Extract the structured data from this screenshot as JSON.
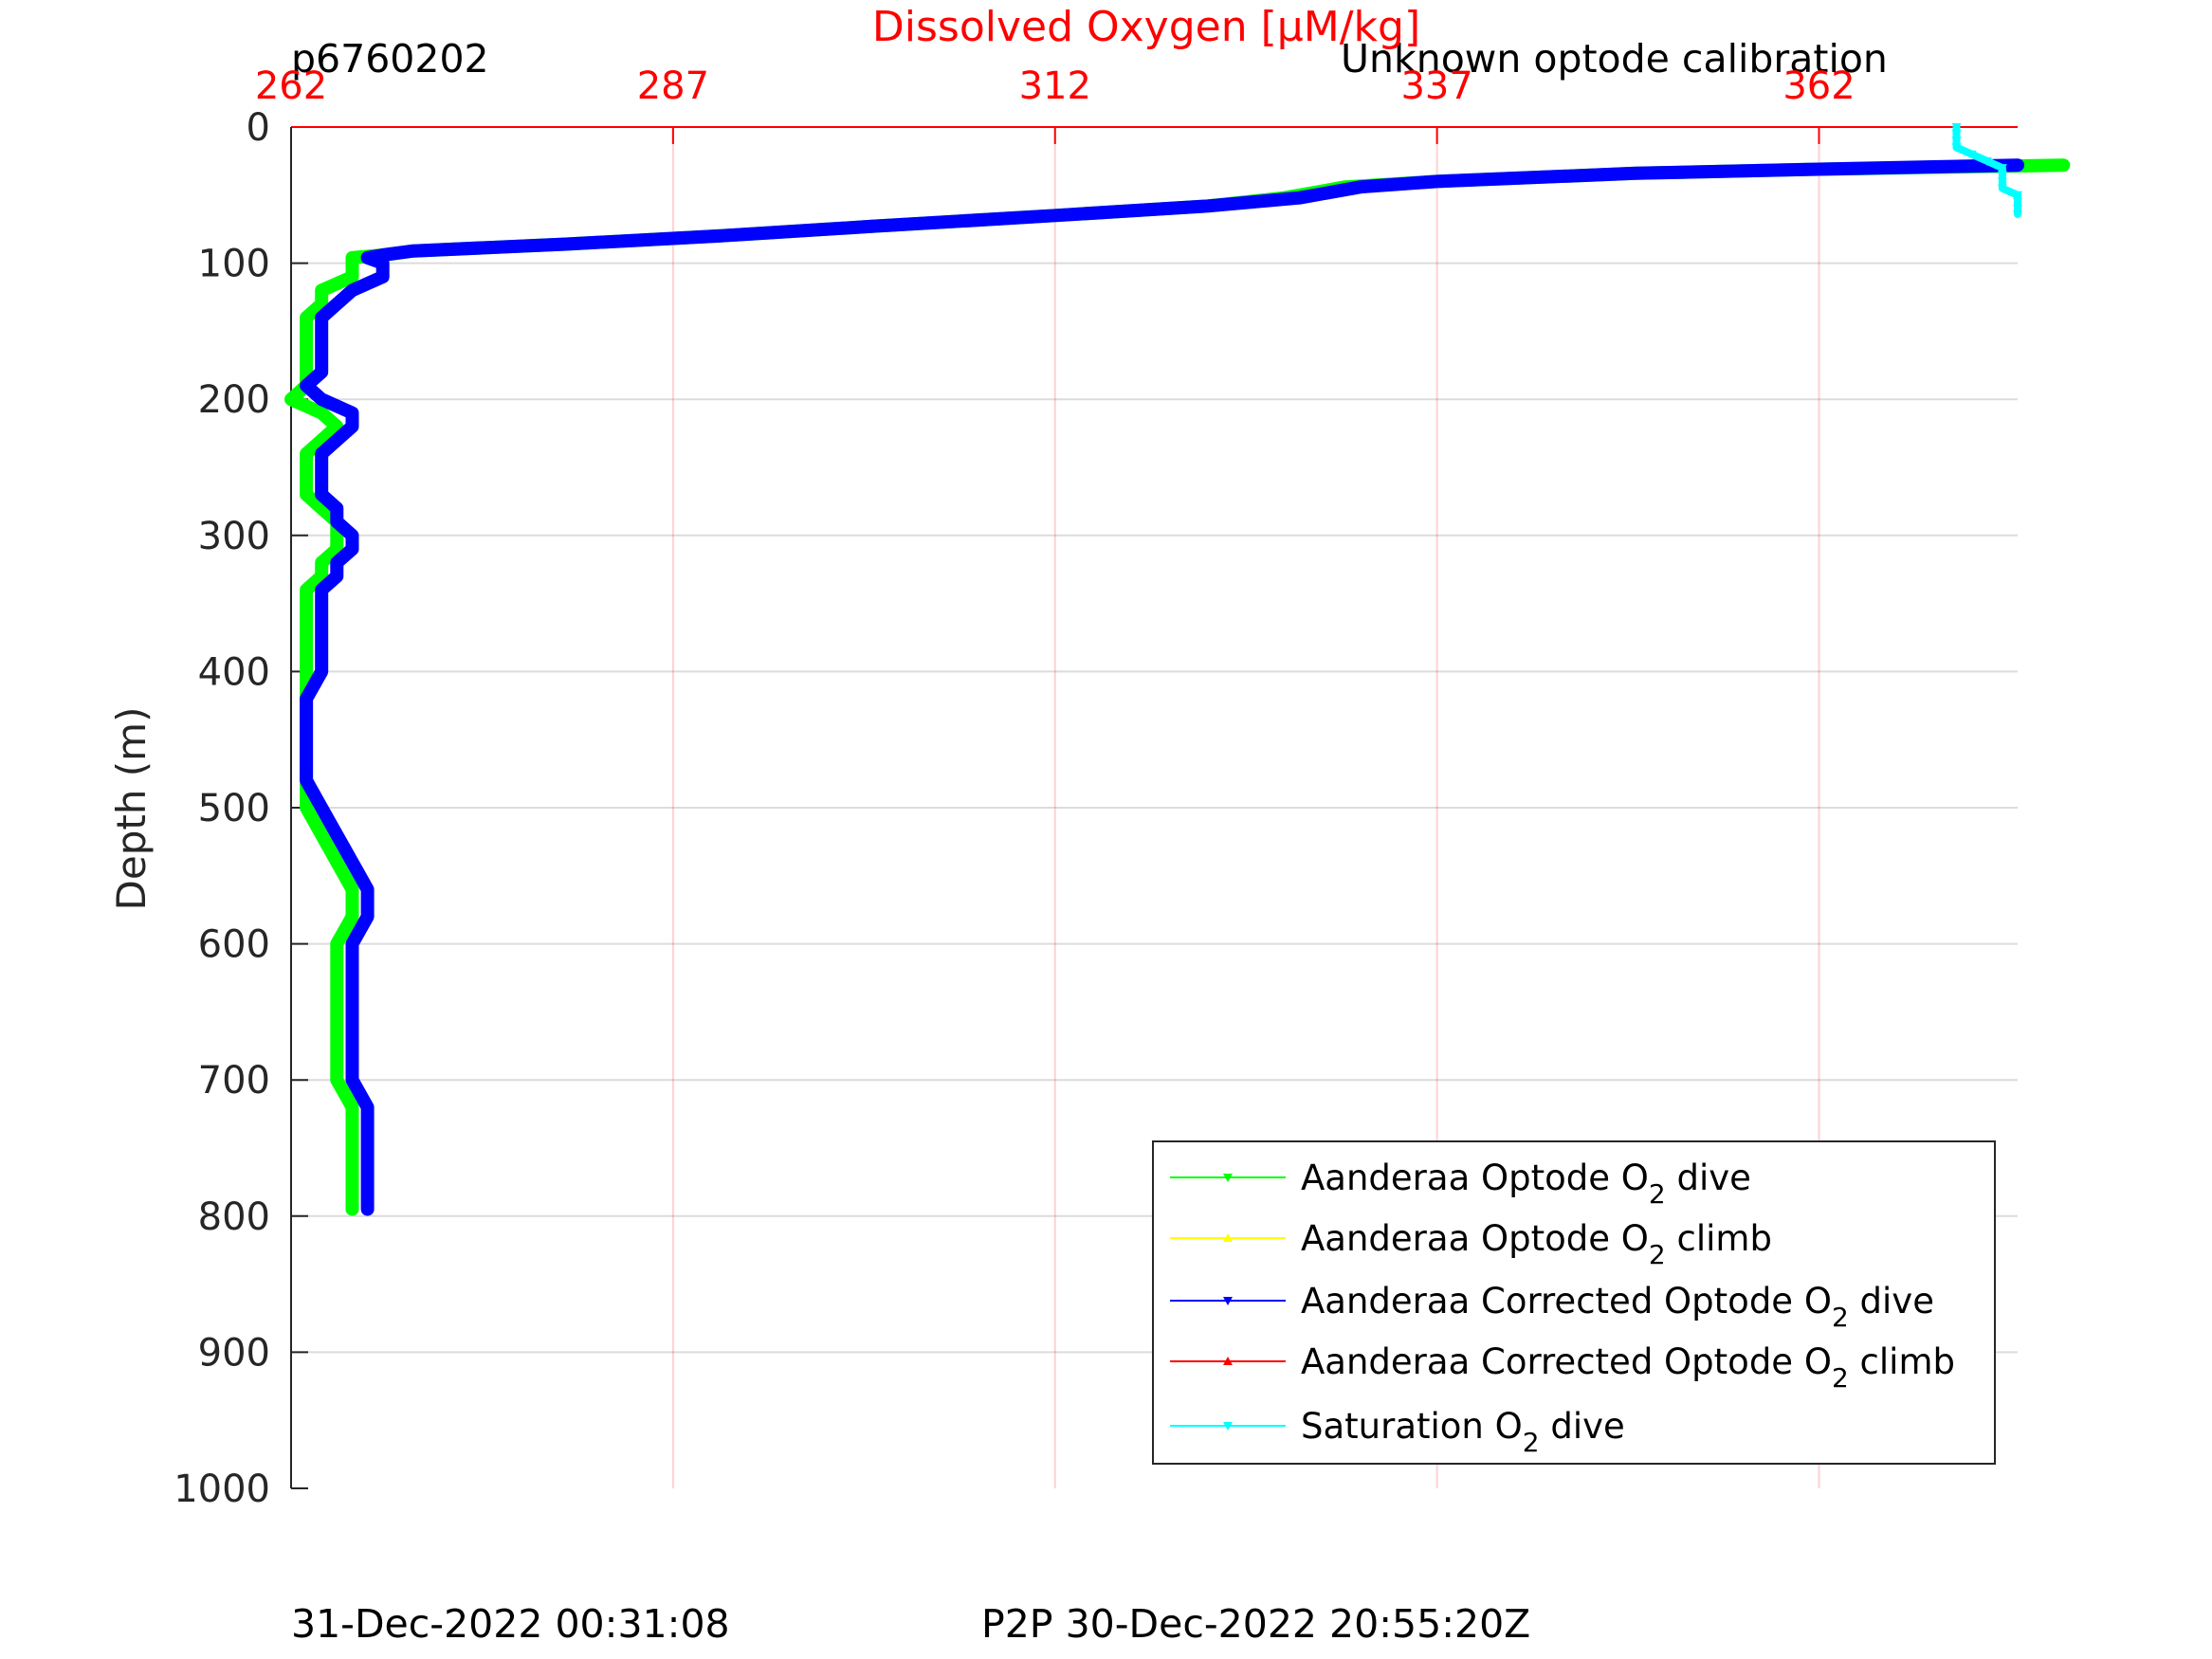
{
  "header": {
    "profile_id": "p6760202",
    "calibration_note": "Unknown optode calibration"
  },
  "footer": {
    "timestamp": "31-Dec-2022 00:31:08",
    "p2p": "P2P 30-Dec-2022 20:55:20Z"
  },
  "chart_data": {
    "type": "line",
    "title": "",
    "xlabel": "Dissolved Oxygen [μM/kg]",
    "xlabel_color": "#ff0000",
    "xaxis_location": "top",
    "ylabel": "Depth (m)",
    "xlim": [
      262,
      375
    ],
    "ylim": [
      0,
      1000
    ],
    "y_reversed": true,
    "x_ticks": [
      262,
      287,
      312,
      337,
      362
    ],
    "y_ticks": [
      0,
      100,
      200,
      300,
      400,
      500,
      600,
      700,
      800,
      900,
      1000
    ],
    "x_grid_color": "#ff0000",
    "grid": true,
    "legend_placement": "bottom-right",
    "legend": [
      {
        "prefix": "Aanderaa Optode O",
        "sub": "2",
        "suffix": " dive",
        "color": "#00ff00",
        "marker": "down"
      },
      {
        "prefix": "Aanderaa Optode O",
        "sub": "2",
        "suffix": " climb",
        "color": "#ffff00",
        "marker": "up"
      },
      {
        "prefix": "Aanderaa Corrected Optode O",
        "sub": "2",
        "suffix": " dive",
        "color": "#0000ff",
        "marker": "down"
      },
      {
        "prefix": "Aanderaa Corrected Optode O",
        "sub": "2",
        "suffix": " climb",
        "color": "#ff0000",
        "marker": "up"
      },
      {
        "prefix": "Saturation O",
        "sub": "2",
        "suffix": " dive",
        "color": "#00ffff",
        "marker": "down"
      }
    ],
    "series": [
      {
        "color": "#00ff00",
        "points": [
          [
            378,
            28
          ],
          [
            362,
            31
          ],
          [
            350,
            34
          ],
          [
            337,
            40
          ],
          [
            331,
            44
          ],
          [
            327,
            52
          ],
          [
            322,
            58
          ],
          [
            312,
            65
          ],
          [
            300,
            73
          ],
          [
            290,
            80
          ],
          [
            280,
            86
          ],
          [
            270,
            91
          ],
          [
            268,
            94
          ],
          [
            266,
            96
          ],
          [
            266,
            100
          ],
          [
            266,
            110
          ],
          [
            264,
            120
          ],
          [
            264,
            130
          ],
          [
            263,
            140
          ],
          [
            263,
            150
          ],
          [
            263,
            160
          ],
          [
            263,
            170
          ],
          [
            263,
            180
          ],
          [
            263,
            190
          ],
          [
            262,
            200
          ],
          [
            264,
            210
          ],
          [
            265,
            220
          ],
          [
            264,
            230
          ],
          [
            263,
            240
          ],
          [
            263,
            250
          ],
          [
            263,
            260
          ],
          [
            263,
            270
          ],
          [
            264,
            280
          ],
          [
            265,
            290
          ],
          [
            265,
            300
          ],
          [
            265,
            310
          ],
          [
            264,
            320
          ],
          [
            264,
            330
          ],
          [
            263,
            340
          ],
          [
            263,
            360
          ],
          [
            263,
            380
          ],
          [
            263,
            400
          ],
          [
            263,
            420
          ],
          [
            263,
            440
          ],
          [
            263,
            460
          ],
          [
            263,
            480
          ],
          [
            263,
            500
          ],
          [
            264,
            520
          ],
          [
            265,
            540
          ],
          [
            266,
            560
          ],
          [
            266,
            580
          ],
          [
            265,
            600
          ],
          [
            265,
            620
          ],
          [
            265,
            640
          ],
          [
            265,
            660
          ],
          [
            265,
            680
          ],
          [
            265,
            700
          ],
          [
            266,
            720
          ],
          [
            266,
            740
          ],
          [
            266,
            760
          ],
          [
            266,
            780
          ],
          [
            266,
            795
          ]
        ]
      },
      {
        "color": "#0000ff",
        "points": [
          [
            375,
            28
          ],
          [
            362,
            31
          ],
          [
            350,
            34
          ],
          [
            337,
            40
          ],
          [
            332,
            44
          ],
          [
            328,
            52
          ],
          [
            322,
            58
          ],
          [
            312,
            65
          ],
          [
            300,
            73
          ],
          [
            290,
            80
          ],
          [
            280,
            86
          ],
          [
            270,
            91
          ],
          [
            268,
            94
          ],
          [
            267,
            96
          ],
          [
            268,
            100
          ],
          [
            268,
            110
          ],
          [
            266,
            120
          ],
          [
            265,
            130
          ],
          [
            264,
            140
          ],
          [
            264,
            150
          ],
          [
            264,
            160
          ],
          [
            264,
            170
          ],
          [
            264,
            180
          ],
          [
            263,
            190
          ],
          [
            264,
            200
          ],
          [
            266,
            210
          ],
          [
            266,
            220
          ],
          [
            265,
            230
          ],
          [
            264,
            240
          ],
          [
            264,
            250
          ],
          [
            264,
            260
          ],
          [
            264,
            270
          ],
          [
            265,
            280
          ],
          [
            265,
            290
          ],
          [
            266,
            300
          ],
          [
            266,
            310
          ],
          [
            265,
            320
          ],
          [
            265,
            330
          ],
          [
            264,
            340
          ],
          [
            264,
            360
          ],
          [
            264,
            380
          ],
          [
            264,
            400
          ],
          [
            263,
            420
          ],
          [
            263,
            440
          ],
          [
            263,
            460
          ],
          [
            263,
            480
          ],
          [
            264,
            500
          ],
          [
            265,
            520
          ],
          [
            266,
            540
          ],
          [
            267,
            560
          ],
          [
            267,
            580
          ],
          [
            266,
            600
          ],
          [
            266,
            620
          ],
          [
            266,
            640
          ],
          [
            266,
            660
          ],
          [
            266,
            680
          ],
          [
            266,
            700
          ],
          [
            267,
            720
          ],
          [
            267,
            740
          ],
          [
            267,
            760
          ],
          [
            267,
            780
          ],
          [
            267,
            795
          ]
        ]
      },
      {
        "color": "#00ffff",
        "points": [
          [
            371,
            0
          ],
          [
            371,
            5
          ],
          [
            371,
            10
          ],
          [
            371,
            15
          ],
          [
            372,
            20
          ],
          [
            373,
            25
          ],
          [
            374,
            30
          ],
          [
            374,
            35
          ],
          [
            374,
            40
          ],
          [
            374,
            45
          ],
          [
            375,
            50
          ],
          [
            375,
            55
          ],
          [
            375,
            60
          ],
          [
            375,
            64
          ]
        ]
      }
    ]
  }
}
